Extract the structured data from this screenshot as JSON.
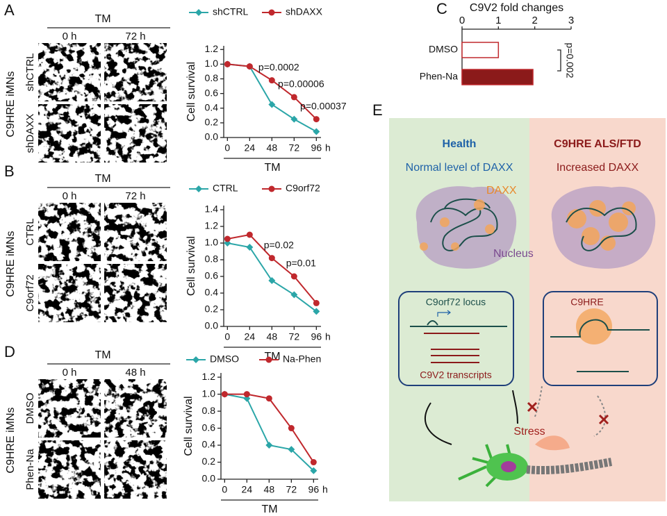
{
  "panel_labels": [
    "A",
    "B",
    "C",
    "D",
    "E"
  ],
  "image_panels": [
    {
      "header": "TM",
      "columns": [
        "0 h",
        "72 h"
      ],
      "rows": [
        "shCTRL",
        "shDAXX"
      ],
      "side": "C9HRE iMNs"
    },
    {
      "header": "TM",
      "columns": [
        "0 h",
        "72 h"
      ],
      "rows": [
        "CTRL",
        "C9orf72"
      ],
      "side": "C9HRE iMNs"
    },
    {
      "header": "TM",
      "columns": [
        "0 h",
        "48 h"
      ],
      "rows": [
        "DMSO",
        "Phen-Na"
      ],
      "side": "C9HRE iMNs"
    }
  ],
  "chart_data": [
    {
      "type": "line",
      "x": [
        0,
        24,
        48,
        72,
        96
      ],
      "xlim": [
        -4,
        101
      ],
      "xticks": [
        0,
        24,
        48,
        72,
        96
      ],
      "x_unit": "h",
      "xlabel": "TM",
      "ylabel": "Cell survival",
      "ylim": [
        0,
        1.25
      ],
      "yticks": [
        {
          "value": 0,
          "label": "0.0"
        },
        0.2,
        0.4,
        0.6,
        0.8,
        {
          "value": 1,
          "label": "1.0"
        },
        1.2
      ],
      "series": [
        {
          "name": "shCTRL",
          "color": "#2ba6a8",
          "marker": "diamond",
          "values": [
            1.0,
            0.97,
            0.45,
            0.25,
            0.08
          ]
        },
        {
          "name": "shDAXX",
          "color": "#c0282d",
          "marker": "circle",
          "values": [
            1.0,
            0.97,
            0.78,
            0.55,
            0.25
          ]
        }
      ],
      "annotations": [
        {
          "text": "p=0.0002",
          "x": 48
        },
        {
          "text": "p=0.00006",
          "x": 72
        },
        {
          "text": "p=0.00037",
          "x": 96
        }
      ]
    },
    {
      "type": "line",
      "x": [
        0,
        24,
        48,
        72,
        96
      ],
      "xlim": [
        -4,
        101
      ],
      "xticks": [
        0,
        24,
        48,
        72,
        96
      ],
      "x_unit": "h",
      "xlabel": "TM",
      "ylabel": "Cell survival",
      "ylim": [
        0,
        1.45
      ],
      "yticks": [
        {
          "value": 0,
          "label": "0.0"
        },
        0.2,
        0.4,
        0.6,
        0.8,
        {
          "value": 1,
          "label": "1.0"
        },
        1.2,
        1.4
      ],
      "series": [
        {
          "name": "CTRL",
          "color": "#2ba6a8",
          "marker": "diamond",
          "values": [
            1.0,
            0.95,
            0.55,
            0.38,
            0.18
          ]
        },
        {
          "name": "C9orf72",
          "color": "#c0282d",
          "marker": "circle",
          "values": [
            1.05,
            1.1,
            0.82,
            0.6,
            0.28
          ]
        }
      ],
      "annotations": [
        {
          "text": "p=0.02",
          "x": 48
        },
        {
          "text": "p=0.01",
          "x": 72
        }
      ]
    },
    {
      "type": "hbar",
      "title": "C9V2 fold changes",
      "categories": [
        "DMSO",
        "Phen-Na"
      ],
      "values": [
        1.0,
        1.95
      ],
      "colors": [
        "#ffffff",
        "#8b1a1a"
      ],
      "edgecolor": "#c0282d",
      "xlim": [
        0,
        3
      ],
      "xticks": [
        0,
        1,
        2,
        3
      ],
      "annotation": "p=0.002"
    },
    {
      "type": "line",
      "x": [
        0,
        24,
        48,
        72,
        96
      ],
      "xlim": [
        -4,
        101
      ],
      "xticks": [
        0,
        24,
        48,
        72,
        96
      ],
      "x_unit": "h",
      "xlabel": "TM",
      "ylabel": "Cell survival",
      "ylim": [
        0,
        1.25
      ],
      "yticks": [
        {
          "value": 0,
          "label": "0.0"
        },
        0.2,
        0.4,
        0.6,
        0.8,
        {
          "value": 1,
          "label": "1.0"
        },
        1.2
      ],
      "series": [
        {
          "name": "DMSO",
          "color": "#2ba6a8",
          "marker": "diamond",
          "values": [
            1.0,
            0.95,
            0.4,
            0.35,
            0.1
          ]
        },
        {
          "name": "Na-Phen",
          "color": "#c0282d",
          "marker": "circle",
          "values": [
            1.0,
            1.0,
            0.95,
            0.6,
            0.2
          ]
        }
      ],
      "annotations": []
    }
  ],
  "diagram": {
    "left_title": "Health",
    "right_title": "C9HRE ALS/FTD",
    "left_subtitle": "Normal level of DAXX",
    "right_subtitle": "Increased DAXX",
    "daxx": "DAXX",
    "nucleus": "Nucleus",
    "locus": "C9orf72 locus",
    "transcripts": "C9V2 transcripts",
    "c9hre": "C9HRE",
    "stress": "Stress"
  }
}
